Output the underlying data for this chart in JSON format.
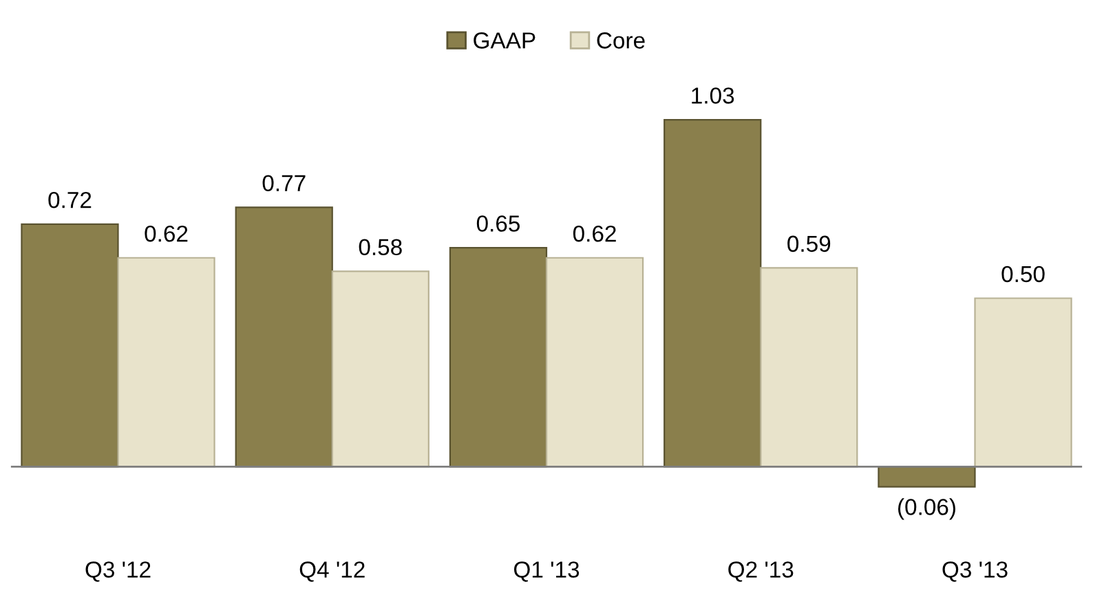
{
  "chart_data": {
    "type": "bar",
    "categories": [
      "Q3 '12",
      "Q4 '12",
      "Q1 '13",
      "Q2 '13",
      "Q3 '13"
    ],
    "series": [
      {
        "name": "GAAP",
        "color": "#8a7f4c",
        "values": [
          0.72,
          0.77,
          0.65,
          1.03,
          -0.06
        ],
        "value_labels": [
          "0.72",
          "0.77",
          "0.65",
          "1.03",
          "(0.06)"
        ]
      },
      {
        "name": "Core",
        "color": "#e8e3cb",
        "values": [
          0.62,
          0.58,
          0.62,
          0.59,
          0.5
        ],
        "value_labels": [
          "0.62",
          "0.58",
          "0.62",
          "0.59",
          "0.50"
        ]
      }
    ],
    "legend": "top",
    "grid": false
  }
}
